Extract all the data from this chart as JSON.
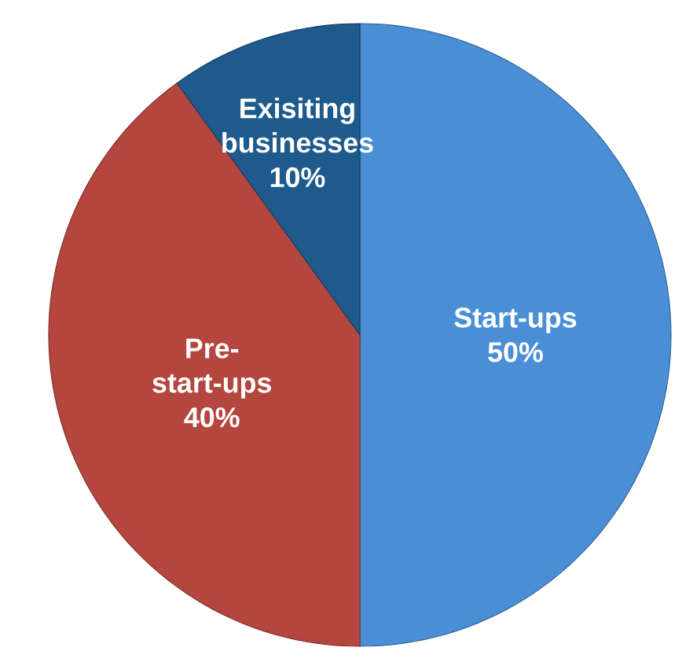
{
  "chart_data": {
    "type": "pie",
    "categories": [
      "Start-ups",
      "Pre-start-ups",
      "Exisiting businesses"
    ],
    "values": [
      50,
      40,
      10
    ],
    "value_labels": [
      "50%",
      "40%",
      "10%"
    ],
    "colors": [
      "#4a8fd6",
      "#b5463f",
      "#1f5a8c"
    ]
  }
}
